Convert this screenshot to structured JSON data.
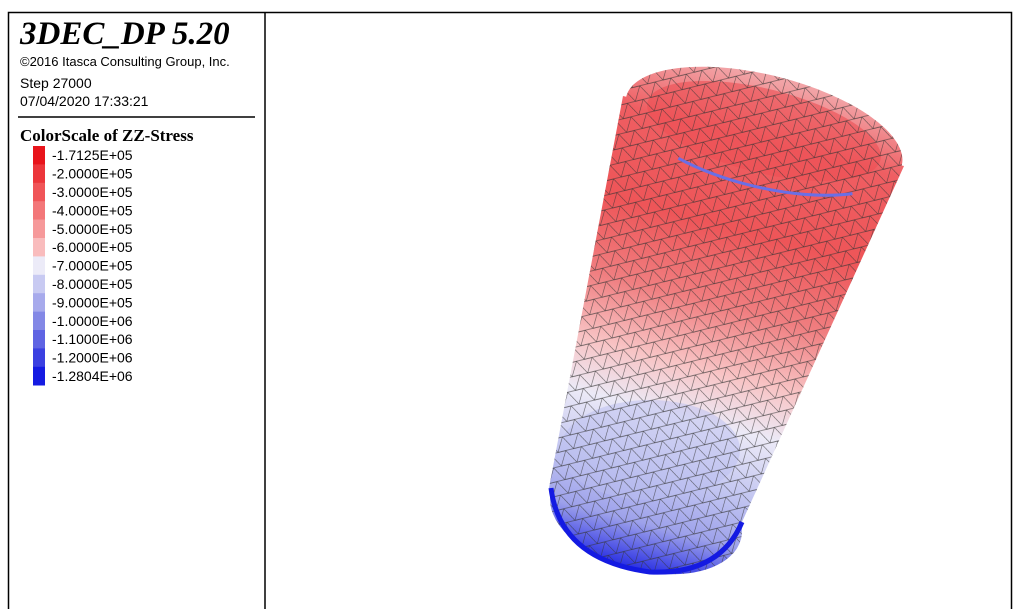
{
  "header": {
    "title": "3DEC_DP 5.20",
    "copyright": "©2016 Itasca Consulting Group, Inc.",
    "step": "Step 27000",
    "date": "07/04/2020 17:33:21"
  },
  "legend": {
    "title": "ColorScale of ZZ-Stress",
    "items": [
      {
        "label": "-1.7125E+05",
        "color": "#e8141b"
      },
      {
        "label": "-2.0000E+05",
        "color": "#ec363b"
      },
      {
        "label": "-3.0000E+05",
        "color": "#f05558"
      },
      {
        "label": "-4.0000E+05",
        "color": "#f37779"
      },
      {
        "label": "-5.0000E+05",
        "color": "#f6999a"
      },
      {
        "label": "-6.0000E+05",
        "color": "#f9bcbd"
      },
      {
        "label": "-7.0000E+05",
        "color": "#ecebf8"
      },
      {
        "label": "-8.0000E+05",
        "color": "#c8caf2"
      },
      {
        "label": "-9.0000E+05",
        "color": "#a7aaec"
      },
      {
        "label": "-1.0000E+06",
        "color": "#8388e6"
      },
      {
        "label": "-1.1000E+06",
        "color": "#5f64e3"
      },
      {
        "label": "-1.2000E+06",
        "color": "#3b40e1"
      },
      {
        "label": "-1.2804E+06",
        "color": "#151be2"
      }
    ]
  }
}
